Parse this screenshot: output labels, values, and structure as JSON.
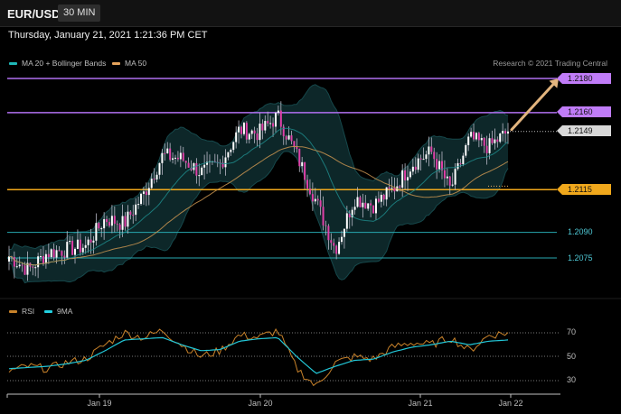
{
  "header": {
    "symbol": "EUR/USD",
    "interval": "30 MIN"
  },
  "timestamp": "Thursday, January 21, 2021 1:21:36 PM CET",
  "legend": {
    "ma20": {
      "label": "MA 20 + Bollinger Bands",
      "color": "#1fb8b8"
    },
    "ma50": {
      "label": "MA 50",
      "color": "#e6a35c"
    }
  },
  "credit": "Research © 2021 Trading Central",
  "price_levels": [
    {
      "label": "1.2180",
      "kind": "resistance",
      "color": "#b070f0"
    },
    {
      "label": "1.2160",
      "kind": "resistance",
      "color": "#b070f0"
    },
    {
      "label": "1.2149",
      "kind": "last-price",
      "color": "#d8d8d8"
    },
    {
      "label": "1.2115",
      "kind": "pivot",
      "color": "#f0a81c"
    },
    {
      "label": "1.2090",
      "kind": "support",
      "color": "#27a8b0"
    },
    {
      "label": "1.2075",
      "kind": "support",
      "color": "#27a8b0"
    }
  ],
  "rsi_panel": {
    "legend": {
      "rsi": {
        "label": "RSI",
        "color": "#c8822a"
      },
      "ma9": {
        "label": "9MA",
        "color": "#22d0e0"
      }
    },
    "ticks": [
      "70",
      "50",
      "30"
    ]
  },
  "x_axis": {
    "ticks": [
      "Jan 19",
      "Jan 20",
      "Jan 21",
      "Jan 22"
    ]
  },
  "chart_data": {
    "type": "candlestick",
    "symbol": "EUR/USD",
    "interval": "30 MIN",
    "x": {
      "type": "time",
      "range": [
        "Jan 18",
        "Jan 22"
      ],
      "ticks": [
        "Jan 19",
        "Jan 20",
        "Jan 21",
        "Jan 22"
      ]
    },
    "y": {
      "range": [
        1.2062,
        1.2188
      ]
    },
    "close_path": [
      {
        "t": "Jan 18",
        "close": 1.2076
      },
      {
        "t": "Jan 18",
        "close": 1.2068
      },
      {
        "t": "Jan 18",
        "close": 1.2078
      },
      {
        "t": "Jan 18",
        "close": 1.208
      },
      {
        "t": "Jan 19",
        "close": 1.2082
      },
      {
        "t": "Jan 19",
        "close": 1.2098
      },
      {
        "t": "Jan 19",
        "close": 1.2095
      },
      {
        "t": "Jan 19",
        "close": 1.2112
      },
      {
        "t": "Jan 19",
        "close": 1.2135
      },
      {
        "t": "Jan 19",
        "close": 1.2133
      },
      {
        "t": "Jan 19",
        "close": 1.2125
      },
      {
        "t": "Jan 20",
        "close": 1.213
      },
      {
        "t": "Jan 20",
        "close": 1.215
      },
      {
        "t": "Jan 20",
        "close": 1.2148
      },
      {
        "t": "Jan 20",
        "close": 1.2158
      },
      {
        "t": "Jan 20",
        "close": 1.2135
      },
      {
        "t": "Jan 20",
        "close": 1.2108
      },
      {
        "t": "Jan 20",
        "close": 1.208
      },
      {
        "t": "Jan 20",
        "close": 1.211
      },
      {
        "t": "Jan 21",
        "close": 1.2106
      },
      {
        "t": "Jan 21",
        "close": 1.2115
      },
      {
        "t": "Jan 21",
        "close": 1.213
      },
      {
        "t": "Jan 21",
        "close": 1.2137
      },
      {
        "t": "Jan 21",
        "close": 1.2115
      },
      {
        "t": "Jan 21",
        "close": 1.2145
      },
      {
        "t": "Jan 21",
        "close": 1.214
      },
      {
        "t": "Jan 21",
        "close": 1.2149
      }
    ],
    "horizontal_lines": [
      {
        "value": 1.218,
        "label": "1.2180"
      },
      {
        "value": 1.216,
        "label": "1.2160"
      },
      {
        "value": 1.2115,
        "label": "1.2115"
      },
      {
        "value": 1.209,
        "label": "1.2090"
      },
      {
        "value": 1.2075,
        "label": "1.2075"
      }
    ],
    "last_price": 1.2149,
    "projection_arrow": {
      "from": 1.2149,
      "to": 1.218,
      "direction": "up"
    },
    "indicators": [
      "MA 20 + Bollinger Bands",
      "MA 50"
    ],
    "rsi": {
      "levels": [
        70,
        50,
        30
      ],
      "values": [
        38,
        42,
        40,
        45,
        48,
        60,
        70,
        66,
        72,
        60,
        50,
        55,
        68,
        66,
        72,
        40,
        25,
        45,
        50,
        48,
        58,
        62,
        60,
        66,
        55,
        68,
        70
      ],
      "ma9": [
        40,
        41,
        42,
        44,
        47,
        55,
        64,
        65,
        66,
        60,
        55,
        56,
        63,
        65,
        66,
        50,
        36,
        42,
        47,
        48,
        54,
        58,
        60,
        63,
        60,
        63,
        64
      ]
    }
  }
}
